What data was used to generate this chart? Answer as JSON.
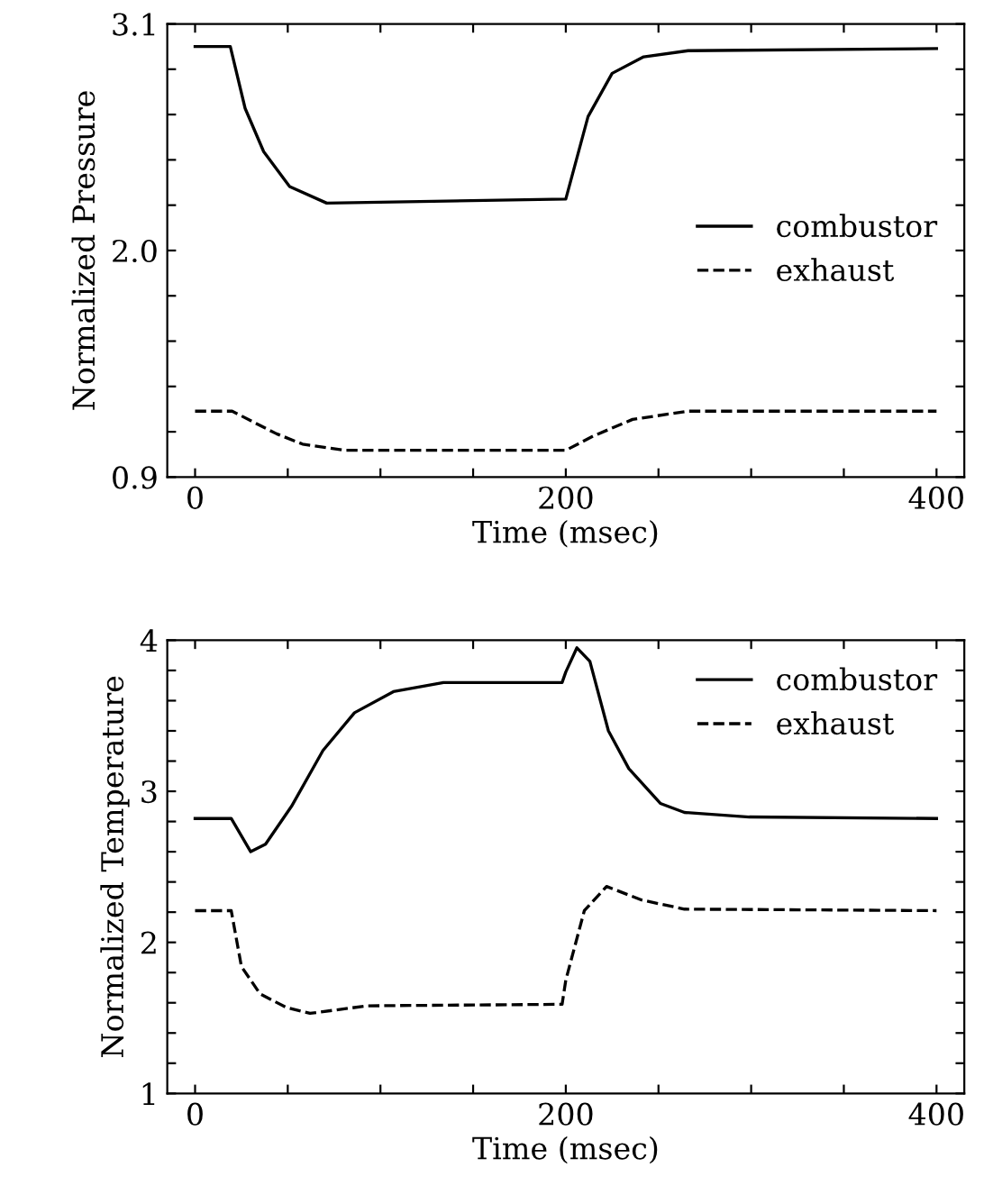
{
  "chart_data": [
    {
      "type": "line",
      "xlabel": "Time (msec)",
      "ylabel": "Normalized Pressure",
      "xlim": [
        -15,
        415
      ],
      "ylim": [
        0.9,
        3.1
      ],
      "xticks": [
        0,
        {
          "value": 50,
          "label": null
        },
        {
          "value": 100,
          "label": null
        },
        {
          "value": 150,
          "label": null
        },
        200,
        {
          "value": 250,
          "label": null
        },
        {
          "value": 300,
          "label": null
        },
        {
          "value": 350,
          "label": null
        },
        400
      ],
      "yticks": [
        0.9,
        {
          "value": 1.12,
          "label": null
        },
        {
          "value": 1.34,
          "label": null
        },
        {
          "value": 1.56,
          "label": null
        },
        {
          "value": 1.78,
          "label": null
        },
        {
          "value": 2,
          "label": "2.0"
        },
        {
          "value": 2.22,
          "label": null
        },
        {
          "value": 2.44,
          "label": null
        },
        {
          "value": 2.66,
          "label": null
        },
        {
          "value": 2.88,
          "label": null
        },
        3.1
      ],
      "legend": "center right",
      "grid": false,
      "series": [
        {
          "name": "combustor",
          "color": "#000000",
          "line_style": "solid",
          "x": [
            0,
            19,
            27,
            37,
            51,
            71,
            200,
            212,
            225,
            242,
            266,
            400
          ],
          "values": [
            2.99,
            2.99,
            2.69,
            2.48,
            2.31,
            2.23,
            2.25,
            2.65,
            2.86,
            2.94,
            2.97,
            2.98
          ]
        },
        {
          "name": "exhaust",
          "color": "#000000",
          "line_style": "dashed",
          "x": [
            0,
            20,
            44,
            58,
            81,
            200,
            215,
            236,
            266,
            400
          ],
          "values": [
            1.22,
            1.22,
            1.11,
            1.06,
            1.03,
            1.03,
            1.1,
            1.18,
            1.22,
            1.22
          ]
        }
      ]
    },
    {
      "type": "line",
      "xlabel": "Time (msec)",
      "ylabel": "Normalized Temperature",
      "xlim": [
        -15,
        415
      ],
      "ylim": [
        1,
        4
      ],
      "xticks": [
        0,
        {
          "value": 50,
          "label": null
        },
        {
          "value": 100,
          "label": null
        },
        {
          "value": 150,
          "label": null
        },
        200,
        {
          "value": 250,
          "label": null
        },
        {
          "value": 300,
          "label": null
        },
        {
          "value": 350,
          "label": null
        },
        400
      ],
      "yticks": [
        1,
        {
          "value": 1.2,
          "label": null
        },
        {
          "value": 1.4,
          "label": null
        },
        {
          "value": 1.6,
          "label": null
        },
        {
          "value": 1.8,
          "label": null
        },
        2,
        {
          "value": 2.2,
          "label": null
        },
        {
          "value": 2.4,
          "label": null
        },
        {
          "value": 2.6,
          "label": null
        },
        {
          "value": 2.8,
          "label": null
        },
        3,
        {
          "value": 3.2,
          "label": null
        },
        {
          "value": 3.4,
          "label": null
        },
        {
          "value": 3.6,
          "label": null
        },
        {
          "value": 3.8,
          "label": null
        },
        4
      ],
      "legend": "upper right",
      "grid": false,
      "series": [
        {
          "name": "combustor",
          "color": "#000000",
          "line_style": "solid",
          "x": [
            0,
            19.5,
            30,
            38,
            52,
            69,
            86,
            107,
            134,
            198,
            200,
            206,
            213,
            223,
            234,
            251,
            264,
            299,
            400
          ],
          "values": [
            2.82,
            2.82,
            2.6,
            2.65,
            2.9,
            3.27,
            3.52,
            3.66,
            3.72,
            3.72,
            3.79,
            3.95,
            3.86,
            3.4,
            3.15,
            2.92,
            2.86,
            2.83,
            2.82
          ]
        },
        {
          "name": "exhaust",
          "color": "#000000",
          "line_style": "dashed",
          "x": [
            0,
            19.5,
            25,
            35,
            49,
            62,
            93,
            198,
            200,
            210,
            222,
            241,
            264,
            400
          ],
          "values": [
            2.21,
            2.21,
            1.84,
            1.66,
            1.57,
            1.53,
            1.58,
            1.59,
            1.75,
            2.21,
            2.37,
            2.28,
            2.22,
            2.21
          ]
        }
      ]
    }
  ]
}
